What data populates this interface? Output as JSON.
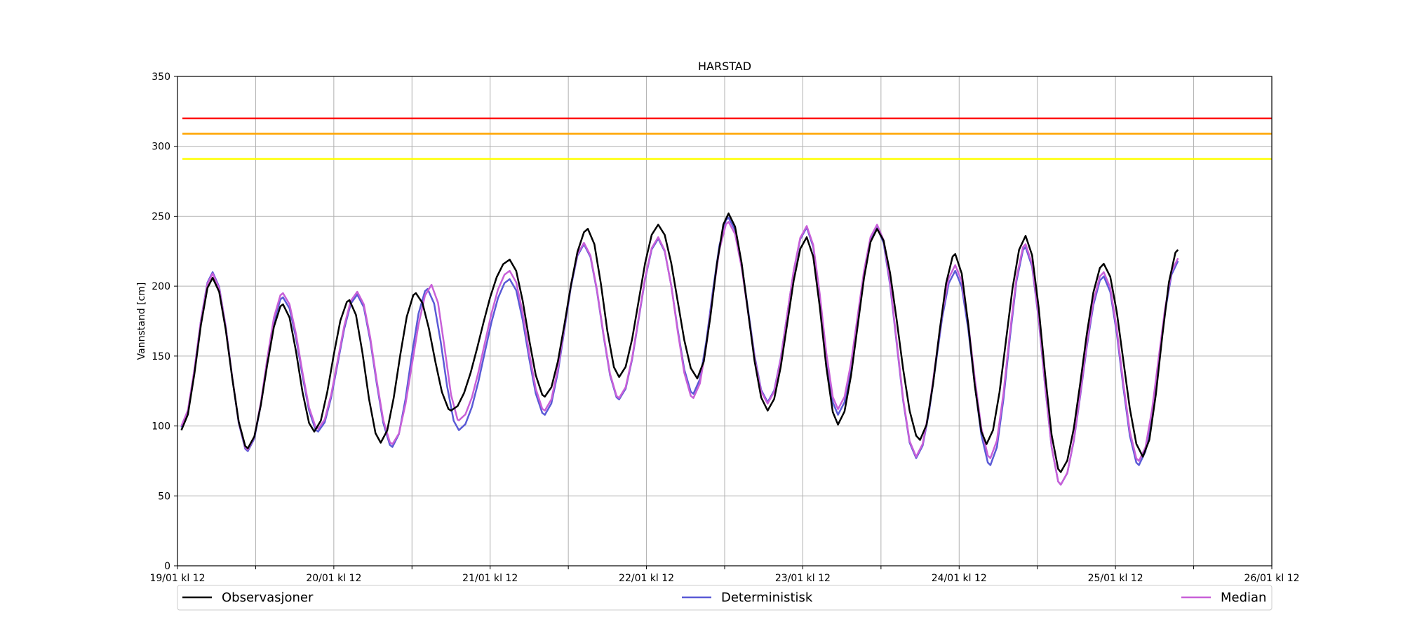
{
  "chart_data": {
    "type": "line",
    "title": "HARSTAD",
    "xlabel": "",
    "ylabel": "Vannstand [cm]",
    "ylim": [
      0,
      350
    ],
    "xlim": [
      "19/01 kl 12",
      "26/01 kl 12"
    ],
    "y_ticks": [
      "0",
      "50",
      "100",
      "150",
      "200",
      "250",
      "300",
      "350"
    ],
    "x_ticks": [
      "19/01 kl 12",
      "20/01 kl 12",
      "21/01 kl 12",
      "22/01 kl 12",
      "23/01 kl 12",
      "24/01 kl 12",
      "25/01 kl 12",
      "26/01 kl 12"
    ],
    "grid": true,
    "legend_placement": "bottom",
    "thresholds": [
      {
        "value": 320,
        "color": "#ff0000"
      },
      {
        "value": 309,
        "color": "#ffa500"
      },
      {
        "value": 291,
        "color": "#ffff00"
      }
    ],
    "series": [
      {
        "name": "Observasjoner",
        "color": "#000000",
        "extrema": [
          [
            0.05,
            97
          ],
          [
            0.45,
            206
          ],
          [
            0.9,
            84
          ],
          [
            1.35,
            187
          ],
          [
            1.75,
            96
          ],
          [
            2.2,
            190
          ],
          [
            2.6,
            88
          ],
          [
            3.05,
            195
          ],
          [
            3.5,
            111
          ],
          [
            4.25,
            219
          ],
          [
            4.7,
            121
          ],
          [
            5.25,
            241
          ],
          [
            5.65,
            135
          ],
          [
            6.15,
            244
          ],
          [
            6.65,
            134
          ],
          [
            7.05,
            252
          ],
          [
            7.55,
            111
          ],
          [
            8.05,
            235
          ],
          [
            8.45,
            101
          ],
          [
            8.95,
            241
          ],
          [
            9.5,
            90
          ],
          [
            9.95,
            223
          ],
          [
            10.35,
            87
          ],
          [
            10.85,
            236
          ],
          [
            11.3,
            67
          ],
          [
            11.85,
            216
          ],
          [
            12.35,
            78
          ],
          [
            12.8,
            226
          ]
        ]
      },
      {
        "name": "Deterministisk",
        "color": "#5a5ad6",
        "extrema": [
          [
            0.05,
            99
          ],
          [
            0.45,
            210
          ],
          [
            0.9,
            82
          ],
          [
            1.35,
            192
          ],
          [
            1.8,
            96
          ],
          [
            2.3,
            194
          ],
          [
            2.75,
            85
          ],
          [
            3.2,
            198
          ],
          [
            3.6,
            97
          ],
          [
            4.25,
            205
          ],
          [
            4.7,
            108
          ],
          [
            5.2,
            230
          ],
          [
            5.65,
            119
          ],
          [
            6.15,
            234
          ],
          [
            6.6,
            123
          ],
          [
            7.05,
            249
          ],
          [
            7.55,
            117
          ],
          [
            8.05,
            242
          ],
          [
            8.45,
            108
          ],
          [
            8.95,
            242
          ],
          [
            9.45,
            77
          ],
          [
            9.95,
            211
          ],
          [
            10.4,
            72
          ],
          [
            10.85,
            228
          ],
          [
            11.3,
            58
          ],
          [
            11.85,
            207
          ],
          [
            12.3,
            72
          ],
          [
            12.8,
            218
          ]
        ]
      },
      {
        "name": "Median",
        "color": "#c860d8",
        "extrema": [
          [
            0.05,
            100
          ],
          [
            0.45,
            209
          ],
          [
            0.9,
            83
          ],
          [
            1.35,
            195
          ],
          [
            1.8,
            98
          ],
          [
            2.3,
            196
          ],
          [
            2.75,
            87
          ],
          [
            3.25,
            201
          ],
          [
            3.6,
            104
          ],
          [
            4.25,
            211
          ],
          [
            4.7,
            111
          ],
          [
            5.2,
            231
          ],
          [
            5.65,
            120
          ],
          [
            6.15,
            235
          ],
          [
            6.6,
            120
          ],
          [
            7.05,
            246
          ],
          [
            7.55,
            116
          ],
          [
            8.05,
            243
          ],
          [
            8.45,
            112
          ],
          [
            8.95,
            244
          ],
          [
            9.45,
            78
          ],
          [
            9.95,
            215
          ],
          [
            10.4,
            77
          ],
          [
            10.85,
            230
          ],
          [
            11.3,
            58
          ],
          [
            11.85,
            210
          ],
          [
            12.3,
            75
          ],
          [
            12.8,
            220
          ]
        ]
      }
    ]
  }
}
